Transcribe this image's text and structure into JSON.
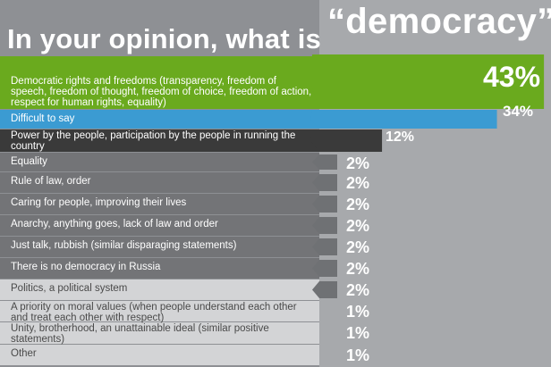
{
  "title_prefix": "In your opinion, what is",
  "title_word": "“democracy”?",
  "colors": {
    "green": "#6aaa1e",
    "blue": "#3b9bd2",
    "dark": "#3a3a3a",
    "gray": "#737477",
    "light": "#d3d4d6",
    "light_text": "#4a4a4a"
  },
  "chart_data": {
    "type": "bar",
    "categories": [
      "Democratic rights and freedoms (transparency, freedom of speech, freedom of thought, freedom of choice, freedom of action, respect for human rights, equality)",
      "Difficult to say",
      "Power by the people, participation by the people in running the country",
      "Equality",
      "Rule of law, order",
      "Caring for people, improving their lives",
      "Anarchy, anything goes, lack of law and order",
      "Just talk, rubbish (similar disparaging statements)",
      "There is no democracy in Russia",
      "Politics, a political system",
      "A priority on moral values (when people understand each other and treat each other with respect)",
      "Unity, brotherhood, an unattainable ideal (similar positive statements)",
      "Other"
    ],
    "values": [
      43,
      34,
      12,
      2,
      2,
      2,
      2,
      2,
      2,
      2,
      1,
      1,
      1
    ],
    "value_labels": [
      "43%",
      "34%",
      "12%",
      "2%",
      "2%",
      "2%",
      "2%",
      "2%",
      "2%",
      "2%",
      "1%",
      "1%",
      "1%"
    ],
    "row_styles": [
      "green",
      "blue",
      "dark",
      "gray",
      "gray",
      "gray",
      "gray",
      "gray",
      "gray",
      "light",
      "light",
      "light",
      "light"
    ]
  }
}
